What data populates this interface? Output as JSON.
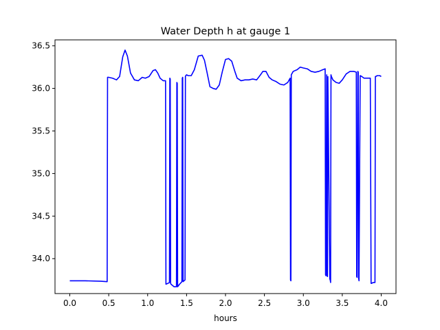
{
  "chart_data": {
    "type": "line",
    "title": "Water Depth h at gauge 1",
    "xlabel": "hours",
    "ylabel": "",
    "xlim": [
      -0.19,
      4.19
    ],
    "ylim": [
      33.59,
      36.57
    ],
    "xticks": [
      0.0,
      0.5,
      1.0,
      1.5,
      2.0,
      2.5,
      3.0,
      3.5,
      4.0
    ],
    "xtick_labels": [
      "0.0",
      "0.5",
      "1.0",
      "1.5",
      "2.0",
      "2.5",
      "3.0",
      "3.5",
      "4.0"
    ],
    "yticks": [
      34.0,
      34.5,
      35.0,
      35.5,
      36.0,
      36.5
    ],
    "ytick_labels": [
      "34.0",
      "34.5",
      "35.0",
      "35.5",
      "36.0",
      "36.5"
    ],
    "grid": false,
    "series": [
      {
        "color": "#0000ff",
        "x": [
          0.0,
          0.2,
          0.4,
          0.48,
          0.485,
          0.5,
          0.55,
          0.6,
          0.64,
          0.68,
          0.71,
          0.74,
          0.78,
          0.83,
          0.88,
          0.93,
          0.97,
          1.02,
          1.07,
          1.1,
          1.13,
          1.16,
          1.2,
          1.23,
          1.235,
          1.26,
          1.28,
          1.285,
          1.29,
          1.295,
          1.3,
          1.34,
          1.37,
          1.375,
          1.38,
          1.385,
          1.41,
          1.44,
          1.445,
          1.45,
          1.455,
          1.48,
          1.485,
          1.49,
          1.5,
          1.52,
          1.56,
          1.6,
          1.65,
          1.7,
          1.73,
          1.76,
          1.8,
          1.84,
          1.88,
          1.92,
          1.96,
          2.0,
          2.04,
          2.08,
          2.12,
          2.15,
          2.2,
          2.25,
          2.3,
          2.35,
          2.4,
          2.45,
          2.48,
          2.52,
          2.56,
          2.6,
          2.65,
          2.7,
          2.75,
          2.8,
          2.83,
          2.835,
          2.84,
          2.845,
          2.87,
          2.92,
          2.96,
          3.0,
          3.05,
          3.1,
          3.15,
          3.2,
          3.25,
          3.28,
          3.285,
          3.29,
          3.3,
          3.305,
          3.31,
          3.315,
          3.34,
          3.345,
          3.35,
          3.355,
          3.36,
          3.38,
          3.42,
          3.46,
          3.5,
          3.55,
          3.6,
          3.65,
          3.68,
          3.685,
          3.69,
          3.7,
          3.705,
          3.71,
          3.715,
          3.73,
          3.75,
          3.78,
          3.82,
          3.86,
          3.87,
          3.875,
          3.9,
          3.92,
          3.925,
          3.93,
          3.95,
          3.98,
          4.0
        ],
        "y": [
          33.74,
          33.74,
          33.735,
          33.73,
          36.13,
          36.13,
          36.12,
          36.1,
          36.14,
          36.37,
          36.45,
          36.38,
          36.18,
          36.1,
          36.09,
          36.13,
          36.12,
          36.14,
          36.21,
          36.22,
          36.18,
          36.12,
          36.09,
          36.09,
          33.7,
          33.71,
          33.72,
          36.12,
          36.11,
          33.71,
          33.7,
          33.67,
          33.67,
          36.07,
          36.06,
          33.67,
          33.7,
          33.73,
          36.12,
          36.13,
          33.73,
          33.75,
          36.14,
          36.15,
          36.16,
          36.15,
          36.15,
          36.22,
          36.38,
          36.39,
          36.33,
          36.2,
          36.02,
          36.0,
          35.99,
          36.04,
          36.2,
          36.34,
          36.35,
          36.32,
          36.2,
          36.12,
          36.09,
          36.1,
          36.1,
          36.11,
          36.1,
          36.16,
          36.2,
          36.2,
          36.13,
          36.1,
          36.08,
          36.05,
          36.04,
          36.07,
          36.12,
          33.75,
          33.74,
          36.16,
          36.2,
          36.22,
          36.25,
          36.24,
          36.23,
          36.2,
          36.19,
          36.2,
          36.22,
          36.23,
          33.81,
          33.8,
          36.16,
          33.8,
          33.79,
          36.14,
          33.76,
          33.75,
          33.72,
          36.16,
          36.14,
          36.1,
          36.07,
          36.06,
          36.1,
          36.17,
          36.2,
          36.2,
          36.19,
          33.79,
          33.78,
          36.2,
          36.19,
          33.77,
          33.74,
          36.15,
          36.14,
          36.12,
          36.12,
          36.12,
          33.71,
          33.71,
          33.72,
          33.72,
          36.14,
          36.14,
          36.15,
          36.15,
          36.14
        ]
      }
    ]
  }
}
